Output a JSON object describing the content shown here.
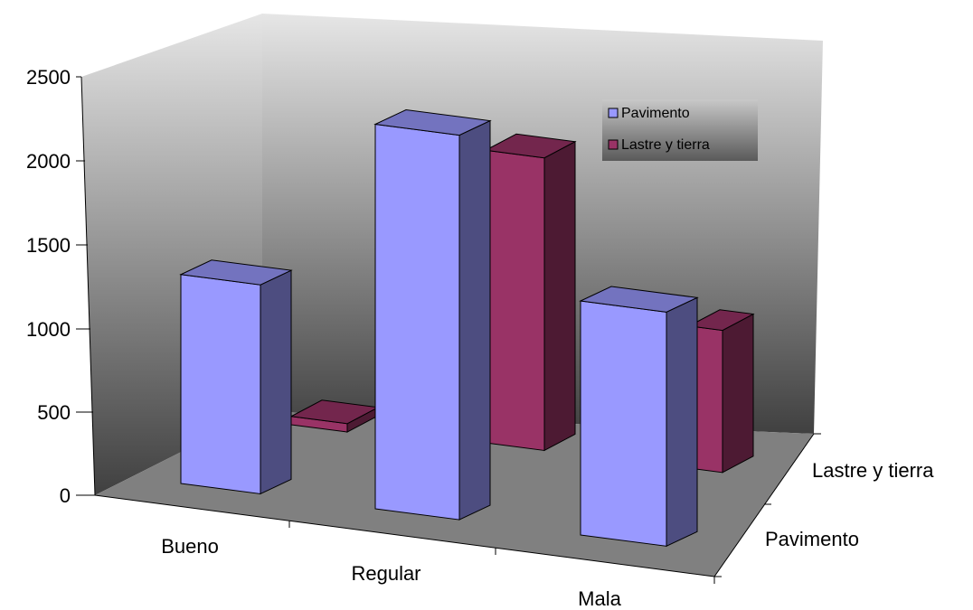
{
  "chart_data": {
    "type": "bar",
    "variant": "3d-column",
    "categories": [
      "Bueno",
      "Regular",
      "Mala"
    ],
    "series": [
      {
        "name": "Pavimento",
        "values": [
          1250,
          2300,
          1400
        ],
        "color": "#9999ff"
      },
      {
        "name": "Lastre y tierra",
        "values": [
          50,
          1750,
          850
        ],
        "color": "#993366"
      }
    ],
    "y_ticks": [
      0,
      500,
      1000,
      1500,
      2000,
      2500
    ],
    "ylim": [
      0,
      2500
    ],
    "depth_labels": [
      "Lastre y tierra",
      "Pavimento"
    ],
    "legend": {
      "position": "top-right",
      "entries": [
        "Pavimento",
        "Lastre y tierra"
      ]
    },
    "grid": false,
    "wall_gradient": [
      "#e6e6e6",
      "#404040"
    ],
    "floor_color": "#808080"
  }
}
